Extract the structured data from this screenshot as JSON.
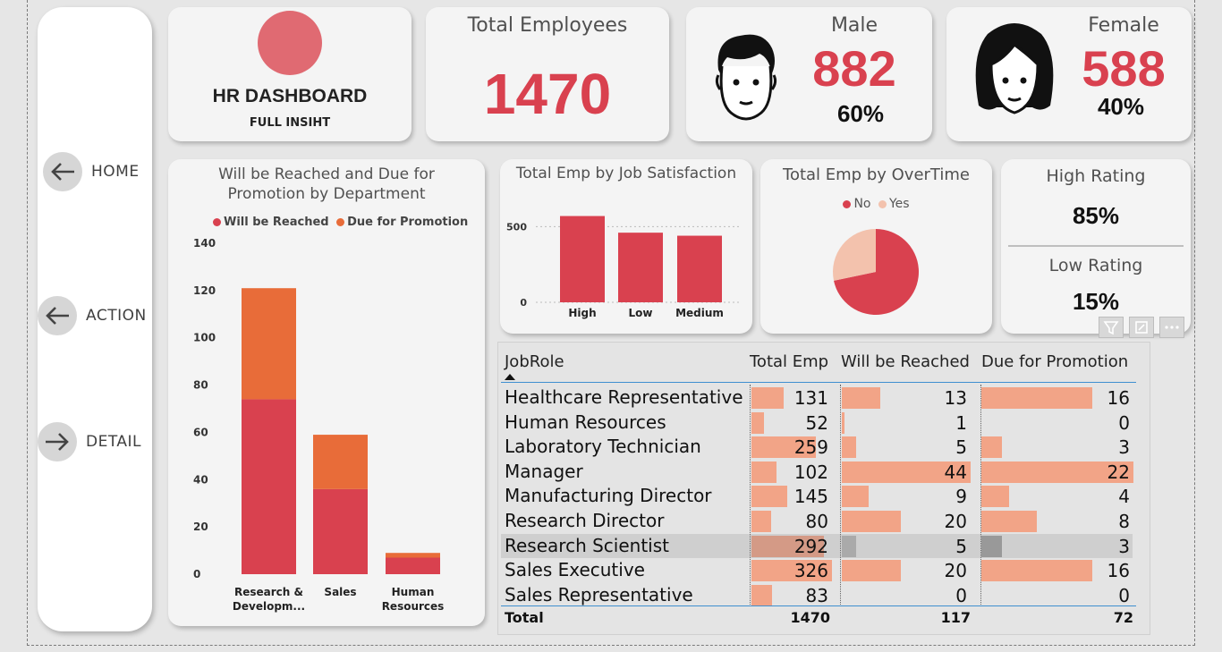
{
  "header": {
    "title": "HR DASHBOARD",
    "subtitle": "FULL INSIHT"
  },
  "nav": [
    {
      "label": "HOME",
      "icon": "arrow-left-icon"
    },
    {
      "label": "ACTION",
      "icon": "arrow-left-icon"
    },
    {
      "label": "DETAIL",
      "icon": "arrow-right-icon"
    }
  ],
  "kpi": {
    "total": {
      "title": "Total Employees",
      "value": "1470"
    },
    "male": {
      "title": "Male",
      "value": "882",
      "pct": "60%"
    },
    "female": {
      "title": "Female",
      "value": "588",
      "pct": "40%"
    }
  },
  "rating": {
    "high_title": "High Rating",
    "high_value": "85%",
    "low_title": "Low Rating",
    "low_value": "15%"
  },
  "colors": {
    "red": "#d9414f",
    "orange": "#e86c39",
    "peach": "#f2a487",
    "light_peach": "#f3c2ad"
  },
  "chart_promo": {
    "type": "bar",
    "title_line1": "Will be Reached and Due for",
    "title_line2": "Promotion by Department",
    "legend": [
      "Will be Reached",
      "Due for Promotion"
    ],
    "categories": [
      "Research & Developm...",
      "Sales",
      "Human Resources"
    ],
    "cat_line1": [
      "Research &",
      "Sales",
      "Human"
    ],
    "cat_line2": [
      "Developm...",
      "",
      "Resources"
    ],
    "series": [
      {
        "name": "Will be Reached",
        "values": [
          74,
          36,
          7
        ]
      },
      {
        "name": "Due for Promotion",
        "values": [
          47,
          23,
          2
        ]
      }
    ],
    "yticks": [
      "0",
      "20",
      "40",
      "60",
      "80",
      "100",
      "120",
      "140"
    ],
    "ylim": [
      0,
      140
    ]
  },
  "chart_satisfaction": {
    "type": "bar",
    "title": "Total Emp by Job Satisfaction",
    "categories": [
      "High",
      "Low",
      "Medium"
    ],
    "values": [
      570,
      460,
      440
    ],
    "yticks": [
      "0",
      "500"
    ],
    "ylim": [
      0,
      650
    ]
  },
  "chart_overtime": {
    "type": "pie",
    "title": "Total Emp by OverTime",
    "legend": [
      "No",
      "Yes"
    ],
    "values": [
      1054,
      416
    ]
  },
  "table": {
    "headers": [
      "JobRole",
      "Total Emp",
      "Will be Reached",
      "Due for Promotion"
    ],
    "rows": [
      {
        "role": "Healthcare Representative",
        "total": "131",
        "reached": "13",
        "due": "16"
      },
      {
        "role": "Human Resources",
        "total": "52",
        "reached": "1",
        "due": "0"
      },
      {
        "role": "Laboratory Technician",
        "total": "259",
        "reached": "5",
        "due": "3"
      },
      {
        "role": "Manager",
        "total": "102",
        "reached": "44",
        "due": "22"
      },
      {
        "role": "Manufacturing Director",
        "total": "145",
        "reached": "9",
        "due": "4"
      },
      {
        "role": "Research Director",
        "total": "80",
        "reached": "20",
        "due": "8"
      },
      {
        "role": "Research Scientist",
        "total": "292",
        "reached": "5",
        "due": "3"
      },
      {
        "role": "Sales Executive",
        "total": "326",
        "reached": "20",
        "due": "16"
      },
      {
        "role": "Sales Representative",
        "total": "83",
        "reached": "0",
        "due": "0"
      }
    ],
    "total_row": {
      "label": "Total",
      "total": "1470",
      "reached": "117",
      "due": "72"
    }
  }
}
